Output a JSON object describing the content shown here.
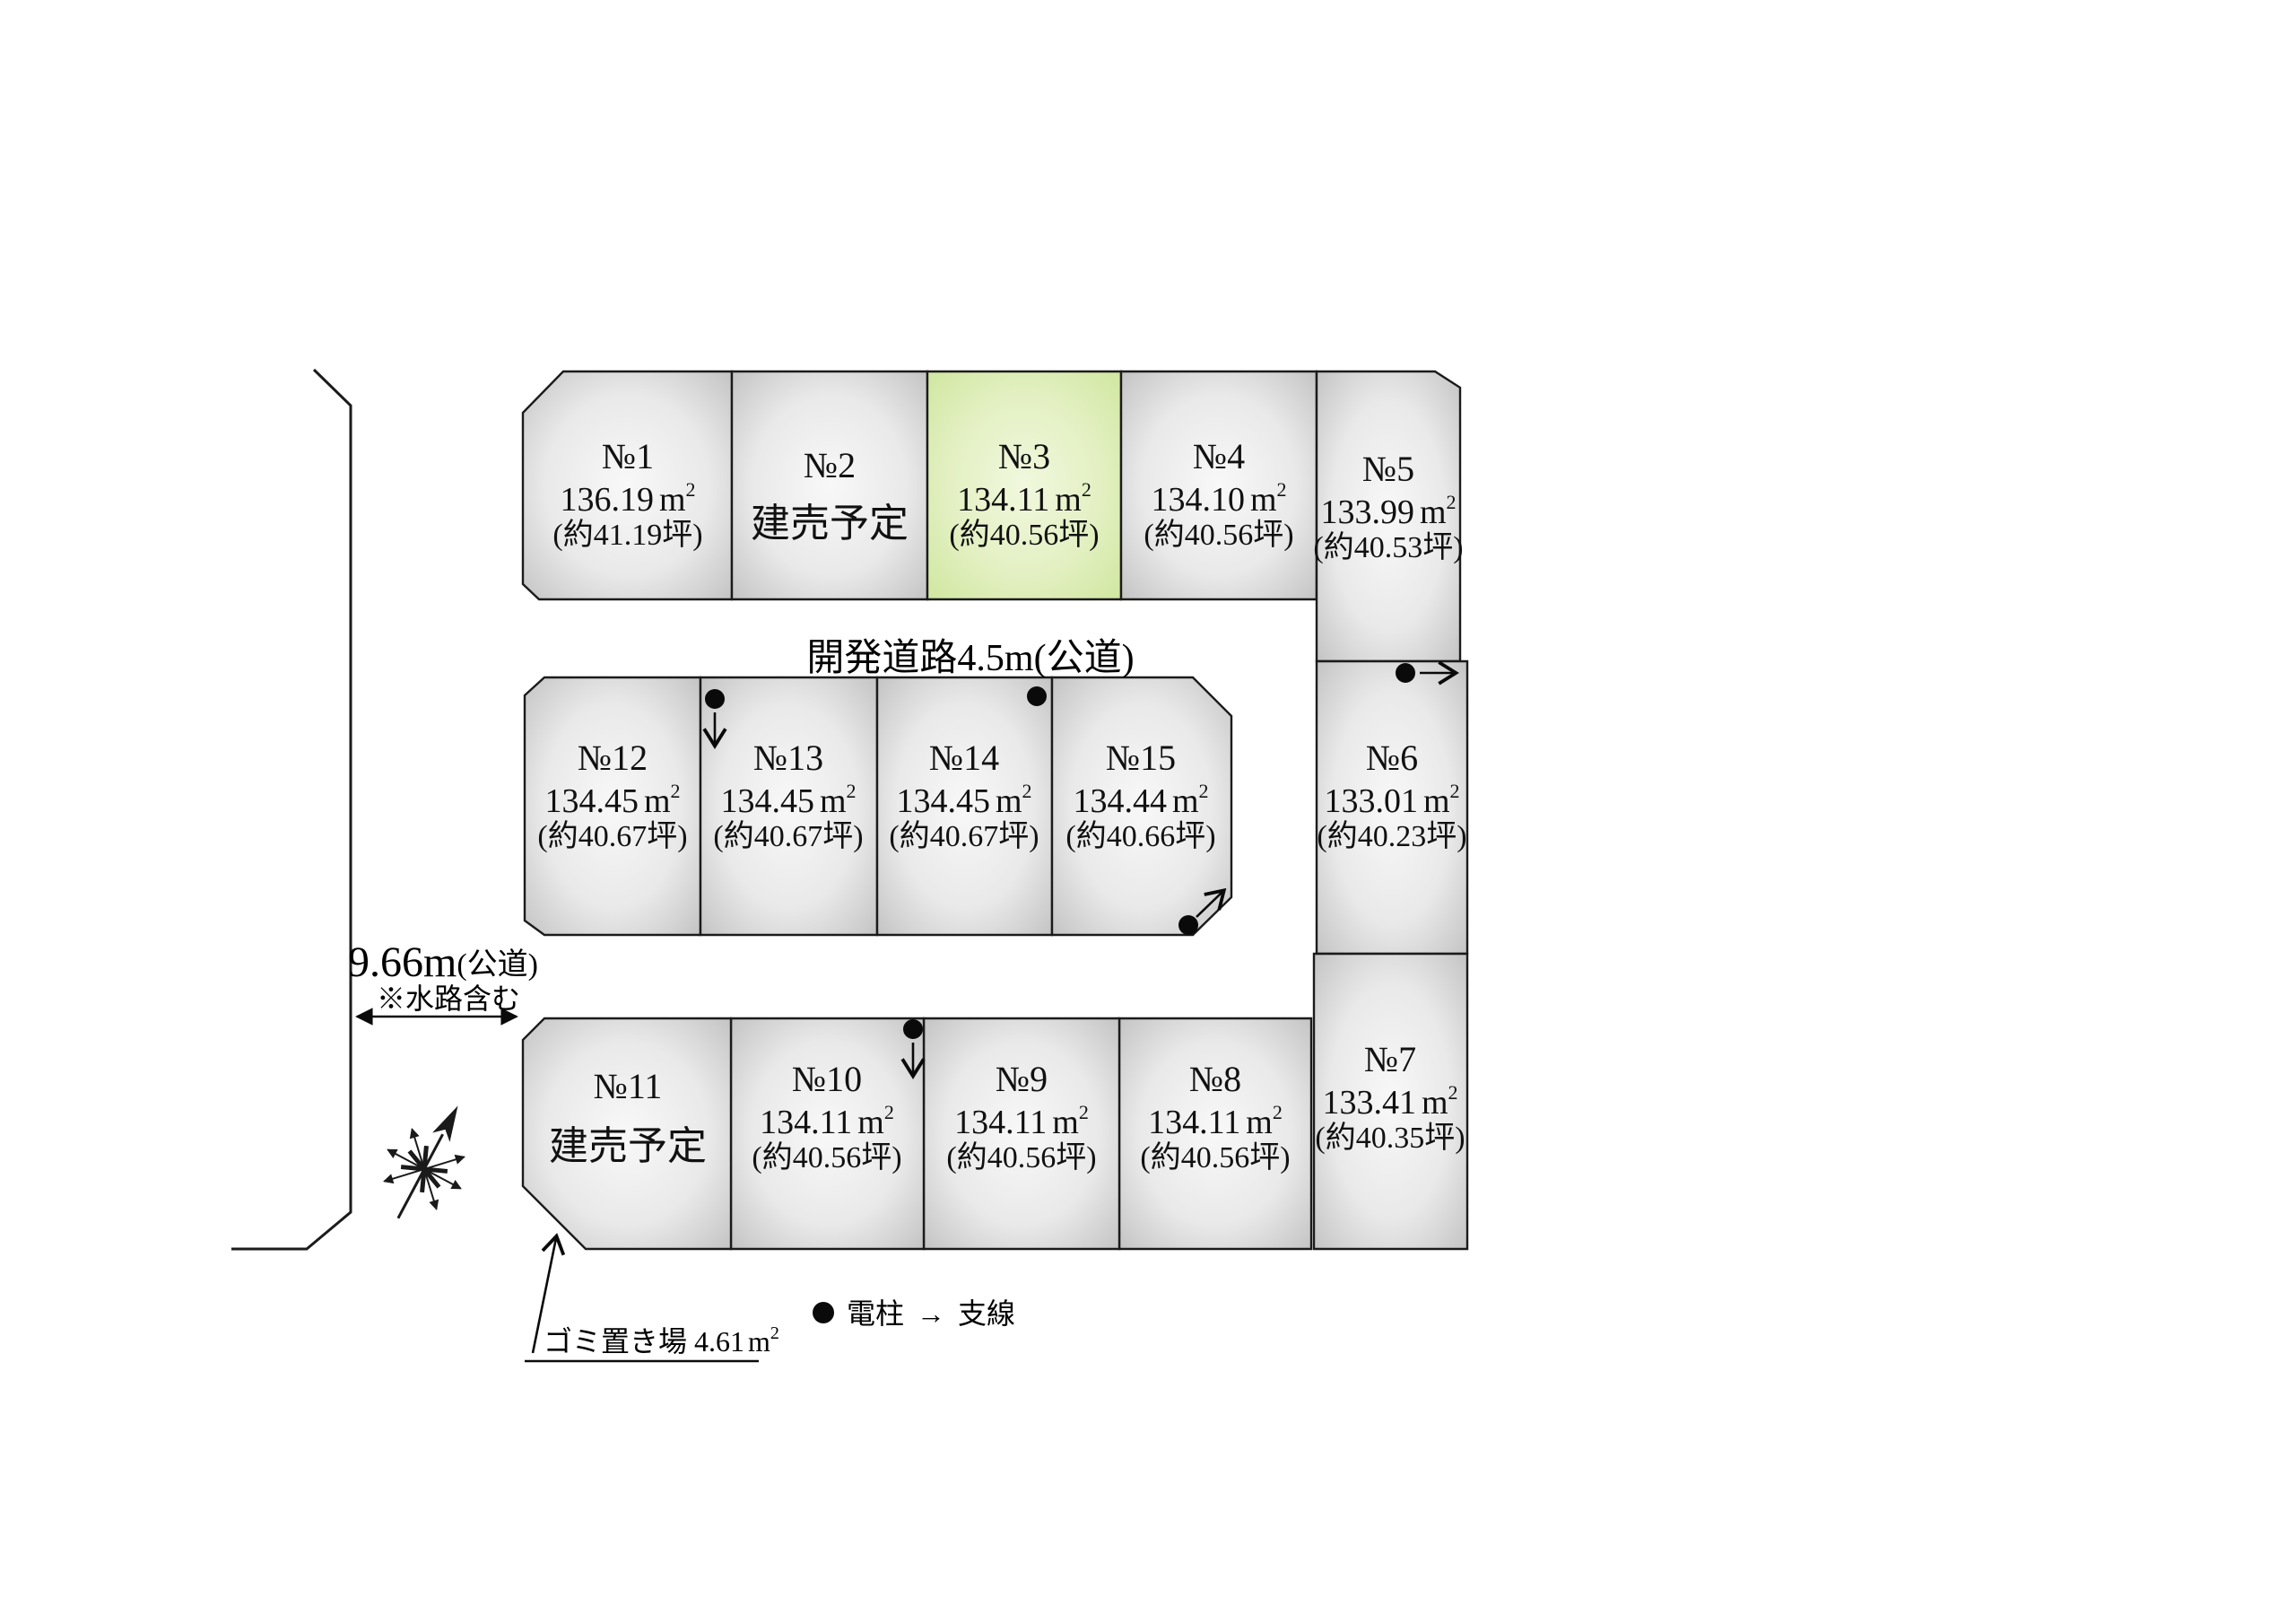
{
  "roads": {
    "top_road_label": "開発道路4.5m(公道)",
    "left_road_width": "9.66m",
    "left_road_kind": "(公道)",
    "left_road_note": "※水路含む"
  },
  "legend": {
    "pole_symbol": "●",
    "pole_label": "電柱",
    "arrow_symbol": "→",
    "wire_label": "支線"
  },
  "garbage": {
    "label": "ゴミ置き場 4.61",
    "unit": "m",
    "unit_sup": "2"
  },
  "area_unit": {
    "base": "m",
    "sup": "2"
  },
  "lots": [
    {
      "id": "no1",
      "name": "№1",
      "area": "136.19",
      "tsubo": "(約41.19坪)",
      "status": null,
      "highlighted": false
    },
    {
      "id": "no2",
      "name": "№2",
      "area": null,
      "tsubo": null,
      "status": "建売予定",
      "highlighted": false
    },
    {
      "id": "no3",
      "name": "№3",
      "area": "134.11",
      "tsubo": "(約40.56坪)",
      "status": null,
      "highlighted": true
    },
    {
      "id": "no4",
      "name": "№4",
      "area": "134.10",
      "tsubo": "(約40.56坪)",
      "status": null,
      "highlighted": false
    },
    {
      "id": "no5",
      "name": "№5",
      "area": "133.99",
      "tsubo": "(約40.53坪)",
      "status": null,
      "highlighted": false
    },
    {
      "id": "no6",
      "name": "№6",
      "area": "133.01",
      "tsubo": "(約40.23坪)",
      "status": null,
      "highlighted": false
    },
    {
      "id": "no7",
      "name": "№7",
      "area": "133.41",
      "tsubo": "(約40.35坪)",
      "status": null,
      "highlighted": false
    },
    {
      "id": "no8",
      "name": "№8",
      "area": "134.11",
      "tsubo": "(約40.56坪)",
      "status": null,
      "highlighted": false
    },
    {
      "id": "no9",
      "name": "№9",
      "area": "134.11",
      "tsubo": "(約40.56坪)",
      "status": null,
      "highlighted": false
    },
    {
      "id": "no10",
      "name": "№10",
      "area": "134.11",
      "tsubo": "(約40.56坪)",
      "status": null,
      "highlighted": false
    },
    {
      "id": "no11",
      "name": "№11",
      "area": null,
      "tsubo": null,
      "status": "建売予定",
      "highlighted": false
    },
    {
      "id": "no12",
      "name": "№12",
      "area": "134.45",
      "tsubo": "(約40.67坪)",
      "status": null,
      "highlighted": false
    },
    {
      "id": "no13",
      "name": "№13",
      "area": "134.45",
      "tsubo": "(約40.67坪)",
      "status": null,
      "highlighted": false
    },
    {
      "id": "no14",
      "name": "№14",
      "area": "134.45",
      "tsubo": "(約40.67坪)",
      "status": null,
      "highlighted": false
    },
    {
      "id": "no15",
      "name": "№15",
      "area": "134.44",
      "tsubo": "(約40.66坪)",
      "status": null,
      "highlighted": false
    }
  ],
  "colors": {
    "lot_edge": "#c2c2c2",
    "lot_center": "#f8f8f8",
    "green_edge": "#cfe69e",
    "green_center": "#f1f8de",
    "line": "#1b1b1b",
    "background": "#ffffff"
  }
}
